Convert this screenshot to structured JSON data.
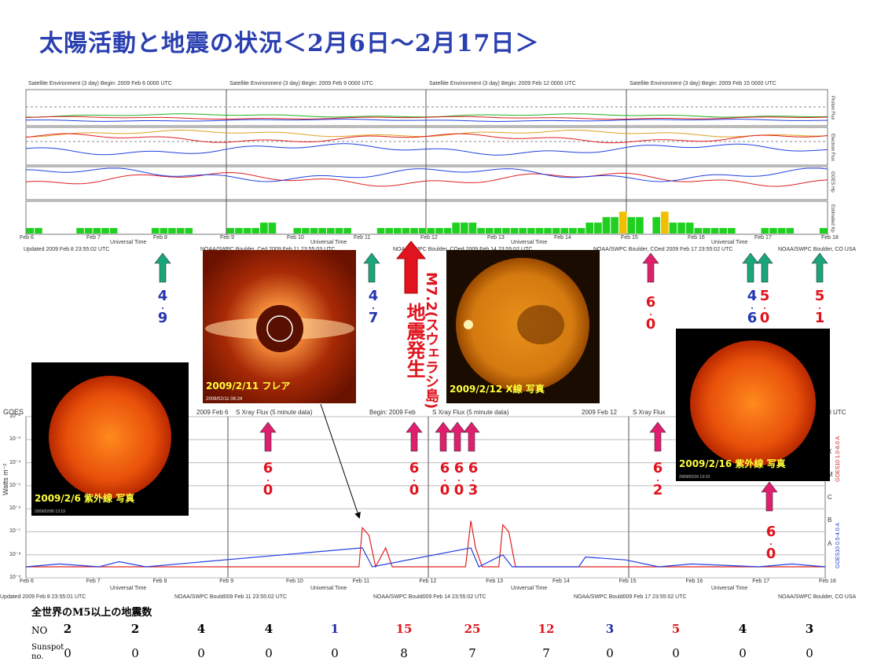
{
  "title": "太陽活動と地震の状況＜2月6日～2月17日＞",
  "colors": {
    "title": "#2a3fb0",
    "green_arrow": "#1aa67a",
    "pink_arrow": "#e01e6e",
    "red_arrow": "#e0141e",
    "quake_red": "#e0141e",
    "quake_blue": "#2436b0",
    "table_blue": "#1e2aa0"
  },
  "top_panel": {
    "headers": [
      "Satellite Environment (3 day)   Begin: 2009 Feb 6 0000 UTC",
      "Satellite Environment (3 day)   Begin: 2009 Feb 9 0000 UTC",
      "Satellite Environment (3 day)   Begin: 2009 Feb 12 0000 UTC",
      "Satellite Environment (3 day)   Begin: 2009 Feb 15 0000 UTC"
    ],
    "side_labels": [
      "Proton Flux",
      "Electron Flux",
      "GOES Hp",
      "Estimated Kp"
    ],
    "days": [
      "Feb 6",
      "Feb 7",
      "Feb 8",
      "Feb 9",
      "Feb 10",
      "Feb 11",
      "Feb 12",
      "Feb 13",
      "Feb 14",
      "Feb 15",
      "Feb 16",
      "Feb 17",
      "Feb 18"
    ],
    "universal_time": "Universal Time",
    "footer": [
      "Updated 2009 Feb  8 23:55:02 UTC",
      "NOAA/SWPC Boulder, Ced 2009 Feb 11 23:55:03 UTC",
      "NOAA/SWPC Boulder, COed 2009 Feb 14 23:55:02 UTC",
      "NOAA/SWPC Boulder, COed 2009 Feb 17 23:55:02 UTC",
      "NOAA/SWPC Boulder, CO USA"
    ]
  },
  "xray_panel": {
    "headers": [
      "GOES",
      "2009 Feb 6",
      "S Xray Flux (5 minute data)",
      "Begin: 2009 Feb",
      "S Xray Flux (5 minute data)",
      "2009 Feb 12",
      "S Xray Flux",
      "0000 UTC"
    ],
    "ylabel": "Watts m⁻²",
    "y_ticks": [
      "10⁻²",
      "10⁻³",
      "10⁻⁴",
      "10⁻⁵",
      "10⁻⁶",
      "10⁻⁷",
      "10⁻⁸",
      "10⁻⁹"
    ],
    "right_labels": [
      "GOES10 1.0-8.0 A",
      "GOES10 0.5-4.0 A"
    ],
    "class_letters": [
      "X",
      "M",
      "C",
      "B",
      "A"
    ],
    "days": [
      "Feb 6",
      "Feb 7",
      "Feb 8",
      "Feb 9",
      "Feb 10",
      "Feb 11",
      "Feb 12",
      "Feb 13",
      "Feb 14",
      "Feb 15",
      "Feb 16",
      "Feb 17",
      "Feb 18"
    ],
    "universal_time": "Universal Time",
    "footer": [
      "Updated 2009 Feb  8 23:55:01 UTC",
      "NOAA/SWPC Bould009 Feb 11 23:55:02 UTC",
      "NOAA/SWPC Bould009 Feb 14 23:55:02 UTC",
      "NOAA/SWPC Bould009 Feb 17 23:55:02 UTC",
      "NOAA/SWPC Boulder, CO USA"
    ]
  },
  "photos": [
    {
      "caption": "2009/2/6 紫外線 写真",
      "stamp": "2009/02/06 13:19"
    },
    {
      "caption": "2009/2/11 フレア",
      "stamp": "2009/02/11 06:24"
    },
    {
      "caption": "2009/2/12 X線 写真",
      "stamp": ""
    },
    {
      "caption": "2009/2/16 紫外線 写真",
      "stamp": "2009/02/16 13:19"
    }
  ],
  "quake_label": "M7.2(スウェラシ島)地震発生",
  "quake_label_parts": {
    "mag": "M7.2",
    "place": "(スウェラシ島)",
    "event": "地震発生"
  },
  "markers": [
    {
      "mag": "4.9",
      "digits": [
        "4",
        "9"
      ],
      "color": "blue",
      "arrow": "green"
    },
    {
      "mag": "4.7",
      "digits": [
        "4",
        "7"
      ],
      "color": "blue",
      "arrow": "green"
    },
    {
      "mag": "6.0",
      "digits": [
        "6",
        "0"
      ],
      "color": "red",
      "arrow": "pink"
    },
    {
      "mag": "4.6",
      "digits": [
        "4",
        "6"
      ],
      "color": "blue",
      "arrow": "green"
    },
    {
      "mag": "5.0",
      "digits": [
        "5",
        "0"
      ],
      "color": "red",
      "arrow": "green"
    },
    {
      "mag": "5.1",
      "digits": [
        "5",
        "1"
      ],
      "color": "red",
      "arrow": "green"
    },
    {
      "mag": "6.0",
      "digits": [
        "6",
        "0"
      ],
      "color": "red",
      "arrow": "pink"
    },
    {
      "mag": "6.0",
      "digits": [
        "6",
        "0"
      ],
      "color": "red",
      "arrow": "pink"
    },
    {
      "mag": "6.0",
      "digits": [
        "6",
        "0"
      ],
      "color": "red",
      "arrow": "pink"
    },
    {
      "mag": "6.0",
      "digits": [
        "6",
        "0"
      ],
      "color": "red",
      "arrow": "pink"
    },
    {
      "mag": "6.3",
      "digits": [
        "6",
        "3"
      ],
      "color": "red",
      "arrow": "pink"
    },
    {
      "mag": "6.2",
      "digits": [
        "6",
        "2"
      ],
      "color": "red",
      "arrow": "pink"
    },
    {
      "mag": "6.0",
      "digits": [
        "6",
        "0"
      ],
      "color": "red",
      "arrow": "pink"
    }
  ],
  "table": {
    "heading": "全世界のM5以上の地震数",
    "row1_label": "NO",
    "row2_label_a": "Sunspot",
    "row2_label_b": "no.",
    "counts": [
      "2",
      "2",
      "4",
      "4",
      "1",
      "15",
      "25",
      "12",
      "3",
      "5",
      "4",
      "3"
    ],
    "count_colors": [
      "black",
      "black",
      "black",
      "black",
      "blue",
      "red",
      "red",
      "red",
      "blue",
      "red",
      "black",
      "black"
    ],
    "sunspots": [
      "0",
      "0",
      "0",
      "0",
      "0",
      "8",
      "7",
      "7",
      "0",
      "0",
      "0",
      "0"
    ]
  },
  "chart_data": [
    {
      "type": "bar",
      "ylabel": "Estimated Kp",
      "x_range": [
        "Feb 6",
        "Feb 18"
      ],
      "note": "3-hourly Kp index, green = quiet, yellow = elevated",
      "series": [
        {
          "values": [
            1,
            1,
            0,
            0,
            0,
            0,
            1,
            1,
            1,
            1,
            1,
            0,
            0,
            0,
            0,
            1,
            1,
            1,
            1,
            1,
            0,
            0,
            0,
            0,
            1,
            1,
            1,
            1,
            2,
            2,
            0,
            0,
            1,
            1,
            1,
            1,
            1,
            1,
            1,
            0,
            0,
            0,
            1,
            1,
            1,
            1,
            1,
            1,
            1,
            1,
            1,
            2,
            2,
            2,
            1,
            1,
            1,
            1,
            1,
            1,
            1,
            1,
            1,
            1,
            1,
            1,
            1,
            2,
            2,
            3,
            3,
            4,
            3,
            3,
            0,
            3,
            4,
            2,
            2,
            2,
            1,
            1,
            1,
            1,
            1,
            0,
            0,
            0,
            1,
            1,
            1,
            1,
            0,
            0,
            0,
            1
          ]
        }
      ],
      "ylim": [
        0,
        9
      ]
    },
    {
      "type": "line",
      "ylabel": "Watts m⁻²",
      "xlabel": "Universal Time",
      "x_range": [
        "Feb 6",
        "Feb 18"
      ],
      "ylim": [
        1e-09,
        0.01
      ],
      "log_scale": true,
      "series": [
        {
          "name": "GOES10 1.0-8.0 A",
          "color": "#e02020",
          "points": [
            [
              0,
              3e-09
            ],
            [
              1.2,
              3e-09
            ],
            [
              2,
              3e-09
            ],
            [
              5,
              3e-09
            ],
            [
              5.05,
              1.5e-07
            ],
            [
              5.15,
              7e-08
            ],
            [
              5.25,
              3e-09
            ],
            [
              5.4,
              2e-08
            ],
            [
              5.5,
              3e-09
            ],
            [
              6.6,
              3e-09
            ],
            [
              6.68,
              3e-07
            ],
            [
              6.75,
              2e-08
            ],
            [
              6.85,
              3e-09
            ],
            [
              7.1,
              3e-09
            ],
            [
              7.16,
              2e-07
            ],
            [
              7.25,
              1e-07
            ],
            [
              7.35,
              3e-09
            ],
            [
              9,
              3e-09
            ],
            [
              12,
              3e-09
            ]
          ]
        },
        {
          "name": "GOES10 0.5-4.0 A",
          "color": "#2040e0",
          "points": [
            [
              0,
              3e-09
            ],
            [
              0.5,
              4e-09
            ],
            [
              1.1,
              3e-09
            ],
            [
              1.4,
              5e-09
            ],
            [
              1.8,
              3e-09
            ],
            [
              5.05,
              2e-08
            ],
            [
              5.2,
              3e-09
            ],
            [
              6.68,
              2e-08
            ],
            [
              6.8,
              3e-09
            ],
            [
              7.16,
              1e-08
            ],
            [
              7.3,
              3e-09
            ],
            [
              8.3,
              3e-09
            ],
            [
              8.4,
              8e-09
            ],
            [
              9,
              6e-09
            ],
            [
              9.5,
              3e-09
            ],
            [
              10,
              4e-09
            ],
            [
              11,
              3e-09
            ],
            [
              11.5,
              4e-09
            ],
            [
              12,
              3e-09
            ]
          ]
        }
      ]
    }
  ]
}
